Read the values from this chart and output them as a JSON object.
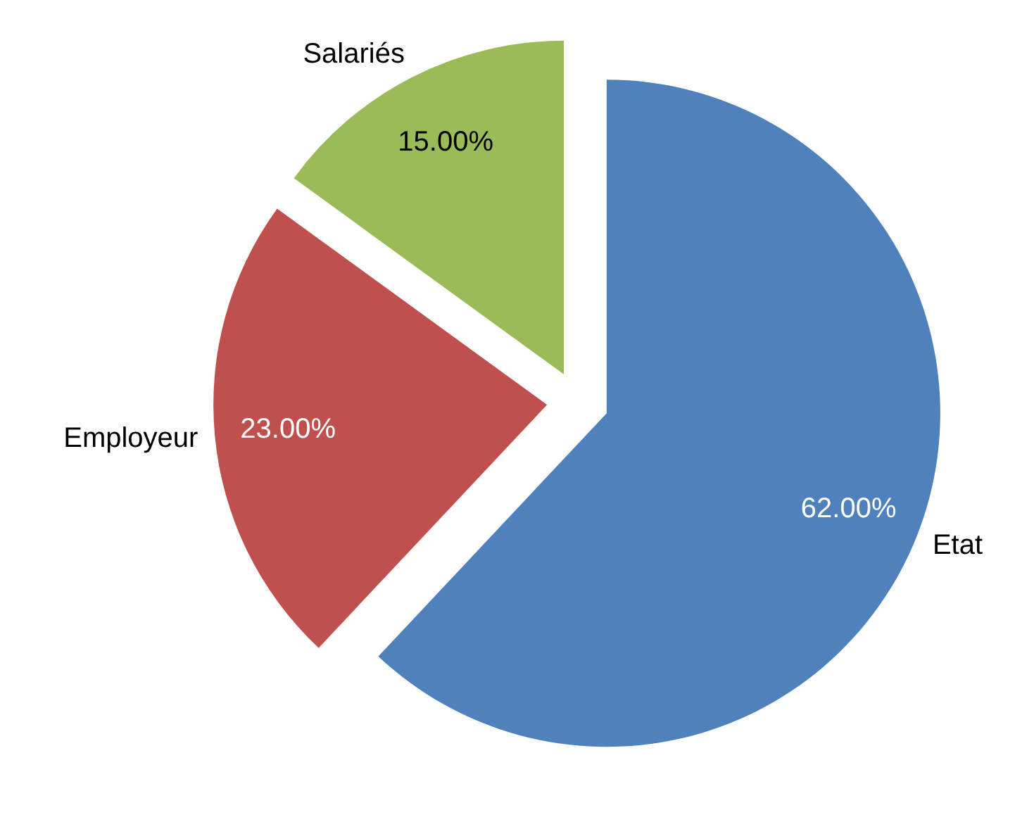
{
  "chart_data": {
    "type": "pie",
    "categories": [
      "Etat",
      "Employeur",
      "Salariés"
    ],
    "values": [
      62,
      23,
      15
    ],
    "colors": [
      "#4f81bd",
      "#c0504d",
      "#9bbb59"
    ],
    "value_labels": [
      "62.00%",
      "23.00%",
      "15.00%"
    ]
  }
}
